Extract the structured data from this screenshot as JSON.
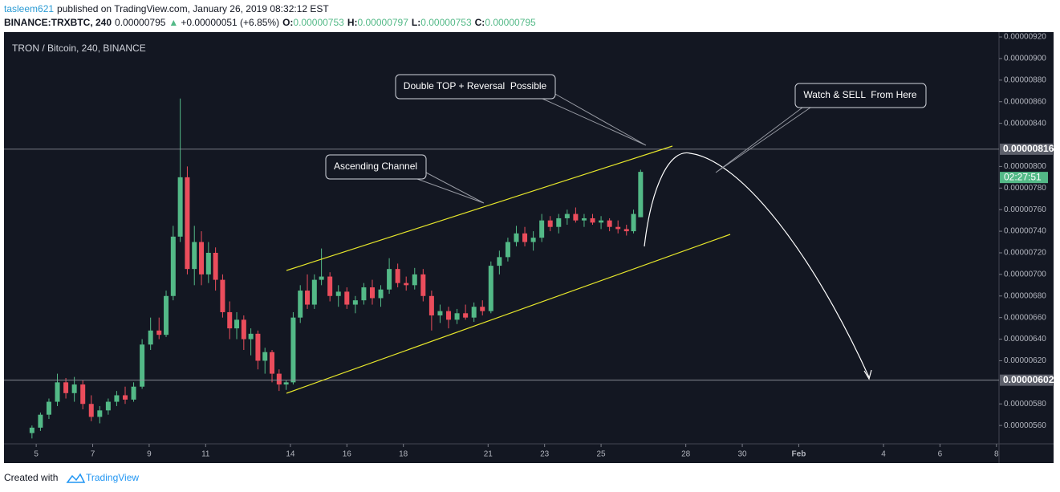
{
  "header": {
    "user": "tasleem621",
    "published": "published on TradingView.com, January 26, 2019 08:32:12 EST",
    "symbol": "BINANCE:TRXBTC, 240",
    "last": "0.00000795",
    "change": "+0.00000051 (+6.85%)",
    "ohlc": [
      {
        "label": "O:",
        "value": "0.00000753"
      },
      {
        "label": "H:",
        "value": "0.00000797"
      },
      {
        "label": "L:",
        "value": "0.00000753"
      },
      {
        "label": "C:",
        "value": "0.00000795"
      }
    ]
  },
  "chart_data": {
    "type": "candlestick",
    "title": "TRON / Bitcoin, 240, BINANCE",
    "x": [
      4.85,
      5.15,
      5.45,
      5.75,
      6.05,
      6.35,
      6.65,
      6.95,
      7.25,
      7.55,
      7.85,
      8.15,
      8.45,
      8.75,
      9.05,
      9.35,
      9.6,
      9.85,
      10.1,
      10.35,
      10.6,
      10.85,
      11.1,
      11.35,
      11.6,
      11.85,
      12.1,
      12.35,
      12.6,
      12.85,
      13.1,
      13.35,
      13.6,
      13.85,
      14.1,
      14.35,
      14.6,
      14.85,
      15.1,
      15.4,
      15.7,
      16.0,
      16.3,
      16.6,
      16.9,
      17.2,
      17.5,
      17.8,
      18.1,
      18.4,
      18.7,
      19.0,
      19.3,
      19.6,
      19.9,
      20.2,
      20.5,
      20.8,
      21.1,
      21.4,
      21.7,
      22.0,
      22.3,
      22.6,
      22.9,
      23.2,
      23.5,
      23.8,
      24.1,
      24.4,
      24.7,
      25.0,
      25.3,
      25.6,
      25.9,
      26.15,
      26.4
    ],
    "open": [
      5.53e-06,
      5.58e-06,
      5.7e-06,
      5.82e-06,
      6e-06,
      5.9e-06,
      5.98e-06,
      5.8e-06,
      5.68e-06,
      5.74e-06,
      5.82e-06,
      5.88e-06,
      5.84e-06,
      5.96e-06,
      6.35e-06,
      6.48e-06,
      6.44e-06,
      6.8e-06,
      7.35e-06,
      7.9e-06,
      7.05e-06,
      7.3e-06,
      7e-06,
      7.2e-06,
      6.95e-06,
      6.65e-06,
      6.5e-06,
      6.58e-06,
      6.4e-06,
      6.45e-06,
      6.2e-06,
      6.28e-06,
      6.08e-06,
      5.98e-06,
      6e-06,
      6.6e-06,
      6.85e-06,
      6.72e-06,
      6.95e-06,
      6.98e-06,
      6.8e-06,
      6.84e-06,
      6.72e-06,
      6.76e-06,
      6.88e-06,
      6.78e-06,
      6.86e-06,
      7.05e-06,
      6.92e-06,
      6.9e-06,
      7e-06,
      6.8e-06,
      6.62e-06,
      6.66e-06,
      6.58e-06,
      6.64e-06,
      6.6e-06,
      6.7e-06,
      6.66e-06,
      7.08e-06,
      7.16e-06,
      7.3e-06,
      7.38e-06,
      7.3e-06,
      7.34e-06,
      7.5e-06,
      7.44e-06,
      7.52e-06,
      7.56e-06,
      7.5e-06,
      7.52e-06,
      7.48e-06,
      7.5e-06,
      7.44e-06,
      7.42e-06,
      7.4e-06,
      7.53e-06
    ],
    "high": [
      5.6e-06,
      5.72e-06,
      5.85e-06,
      6.08e-06,
      6.04e-06,
      6.05e-06,
      6.02e-06,
      5.88e-06,
      5.78e-06,
      5.85e-06,
      5.92e-06,
      5.96e-06,
      6e-06,
      6.4e-06,
      6.6e-06,
      6.6e-06,
      6.85e-06,
      7.45e-06,
      8.63e-06,
      8e-06,
      7.45e-06,
      7.4e-06,
      7.3e-06,
      7.25e-06,
      7e-06,
      6.75e-06,
      6.65e-06,
      6.62e-06,
      6.5e-06,
      6.48e-06,
      6.32e-06,
      6.3e-06,
      6.12e-06,
      6.02e-06,
      6.65e-06,
      6.9e-06,
      7e-06,
      7e-06,
      7.24e-06,
      7.02e-06,
      6.9e-06,
      6.88e-06,
      6.8e-06,
      6.92e-06,
      6.95e-06,
      6.9e-06,
      7.15e-06,
      7.1e-06,
      6.98e-06,
      7.06e-06,
      7.05e-06,
      6.85e-06,
      6.72e-06,
      6.7e-06,
      6.68e-06,
      6.72e-06,
      6.74e-06,
      6.76e-06,
      7.12e-06,
      7.22e-06,
      7.34e-06,
      7.45e-06,
      7.44e-06,
      7.4e-06,
      7.56e-06,
      7.54e-06,
      7.56e-06,
      7.6e-06,
      7.62e-06,
      7.56e-06,
      7.56e-06,
      7.54e-06,
      7.52e-06,
      7.5e-06,
      7.46e-06,
      7.6e-06,
      7.97e-06
    ],
    "low": [
      5.48e-06,
      5.55e-06,
      5.66e-06,
      5.78e-06,
      5.85e-06,
      5.82e-06,
      5.75e-06,
      5.64e-06,
      5.62e-06,
      5.7e-06,
      5.78e-06,
      5.8e-06,
      5.82e-06,
      5.94e-06,
      6.3e-06,
      6.4e-06,
      6.42e-06,
      6.76e-06,
      7.3e-06,
      7e-06,
      6.9e-06,
      6.9e-06,
      6.92e-06,
      6.85e-06,
      6.6e-06,
      6.4e-06,
      6.4e-06,
      6.3e-06,
      6.25e-06,
      6.12e-06,
      6.08e-06,
      6e-06,
      5.92e-06,
      5.93e-06,
      5.98e-06,
      6.55e-06,
      6.68e-06,
      6.68e-06,
      6.9e-06,
      6.75e-06,
      6.7e-06,
      6.68e-06,
      6.64e-06,
      6.72e-06,
      6.72e-06,
      6.7e-06,
      6.82e-06,
      6.88e-06,
      6.85e-06,
      6.86e-06,
      6.75e-06,
      6.48e-06,
      6.55e-06,
      6.5e-06,
      6.54e-06,
      6.58e-06,
      6.56e-06,
      6.62e-06,
      6.64e-06,
      7e-06,
      7.12e-06,
      7.26e-06,
      7.26e-06,
      7.22e-06,
      7.3e-06,
      7.4e-06,
      7.38e-06,
      7.46e-06,
      7.48e-06,
      7.44e-06,
      7.46e-06,
      7.42e-06,
      7.4e-06,
      7.38e-06,
      7.36e-06,
      7.38e-06,
      7.53e-06
    ],
    "close": [
      5.58e-06,
      5.7e-06,
      5.82e-06,
      6e-06,
      5.9e-06,
      5.98e-06,
      5.8e-06,
      5.68e-06,
      5.74e-06,
      5.82e-06,
      5.88e-06,
      5.84e-06,
      5.96e-06,
      6.35e-06,
      6.48e-06,
      6.44e-06,
      6.8e-06,
      7.35e-06,
      7.9e-06,
      7.05e-06,
      7.3e-06,
      7e-06,
      7.2e-06,
      6.95e-06,
      6.65e-06,
      6.5e-06,
      6.58e-06,
      6.4e-06,
      6.45e-06,
      6.2e-06,
      6.28e-06,
      6.08e-06,
      5.98e-06,
      6e-06,
      6.6e-06,
      6.85e-06,
      6.72e-06,
      6.95e-06,
      6.98e-06,
      6.8e-06,
      6.84e-06,
      6.72e-06,
      6.76e-06,
      6.88e-06,
      6.78e-06,
      6.86e-06,
      7.05e-06,
      6.92e-06,
      6.9e-06,
      7e-06,
      6.8e-06,
      6.62e-06,
      6.66e-06,
      6.58e-06,
      6.64e-06,
      6.6e-06,
      6.7e-06,
      6.66e-06,
      7.08e-06,
      7.16e-06,
      7.3e-06,
      7.38e-06,
      7.3e-06,
      7.34e-06,
      7.5e-06,
      7.44e-06,
      7.52e-06,
      7.56e-06,
      7.5e-06,
      7.52e-06,
      7.48e-06,
      7.5e-06,
      7.44e-06,
      7.42e-06,
      7.4e-06,
      7.56e-06,
      7.95e-06
    ],
    "up_color": "#53b987",
    "down_color": "#eb4d5c",
    "xlim": [
      3.86,
      39.09
    ],
    "xticks": [
      5,
      7,
      9,
      11,
      14,
      16,
      18,
      21,
      23,
      25,
      28,
      30,
      {
        "value": 32,
        "label": "Feb"
      },
      {
        "value": 35,
        "label": "4"
      },
      {
        "value": 37,
        "label": "6"
      },
      {
        "value": 39,
        "label": "8"
      }
    ],
    "ylim": [
      5.43e-06,
      9.245e-06
    ],
    "yticks": [
      {
        "value": 5.6e-06,
        "label": "0.00000560"
      },
      {
        "value": 5.8e-06,
        "label": "0.00000580"
      },
      {
        "value": 6.2e-06,
        "label": "0.00000620"
      },
      {
        "value": 6.4e-06,
        "label": "0.00000640"
      },
      {
        "value": 6.6e-06,
        "label": "0.00000660"
      },
      {
        "value": 6.8e-06,
        "label": "0.00000680"
      },
      {
        "value": 7e-06,
        "label": "0.00000700"
      },
      {
        "value": 7.2e-06,
        "label": "0.00000720"
      },
      {
        "value": 7.4e-06,
        "label": "0.00000740"
      },
      {
        "value": 7.6e-06,
        "label": "0.00000760"
      },
      {
        "value": 7.8e-06,
        "label": "0.00000780"
      },
      {
        "value": 8e-06,
        "label": "0.00000800"
      },
      {
        "value": 8.4e-06,
        "label": "0.00000840"
      },
      {
        "value": 8.6e-06,
        "label": "0.00000860"
      },
      {
        "value": 8.8e-06,
        "label": "0.00000880"
      },
      {
        "value": 9e-06,
        "label": "0.00000900"
      },
      {
        "value": 9.2e-06,
        "label": "0.00000920"
      }
    ],
    "hlines": [
      {
        "value": 8.16e-06,
        "label": "0.00000816"
      },
      {
        "value": 6.02e-06,
        "label": "0.00000602"
      }
    ],
    "countdown": "02:27:51",
    "annotations": [
      "Double TOP + Reversal  Possible",
      "Watch & SELL  From Here",
      "Ascending Channel"
    ]
  },
  "footer": {
    "text": "Created with",
    "brand": "TradingView"
  }
}
